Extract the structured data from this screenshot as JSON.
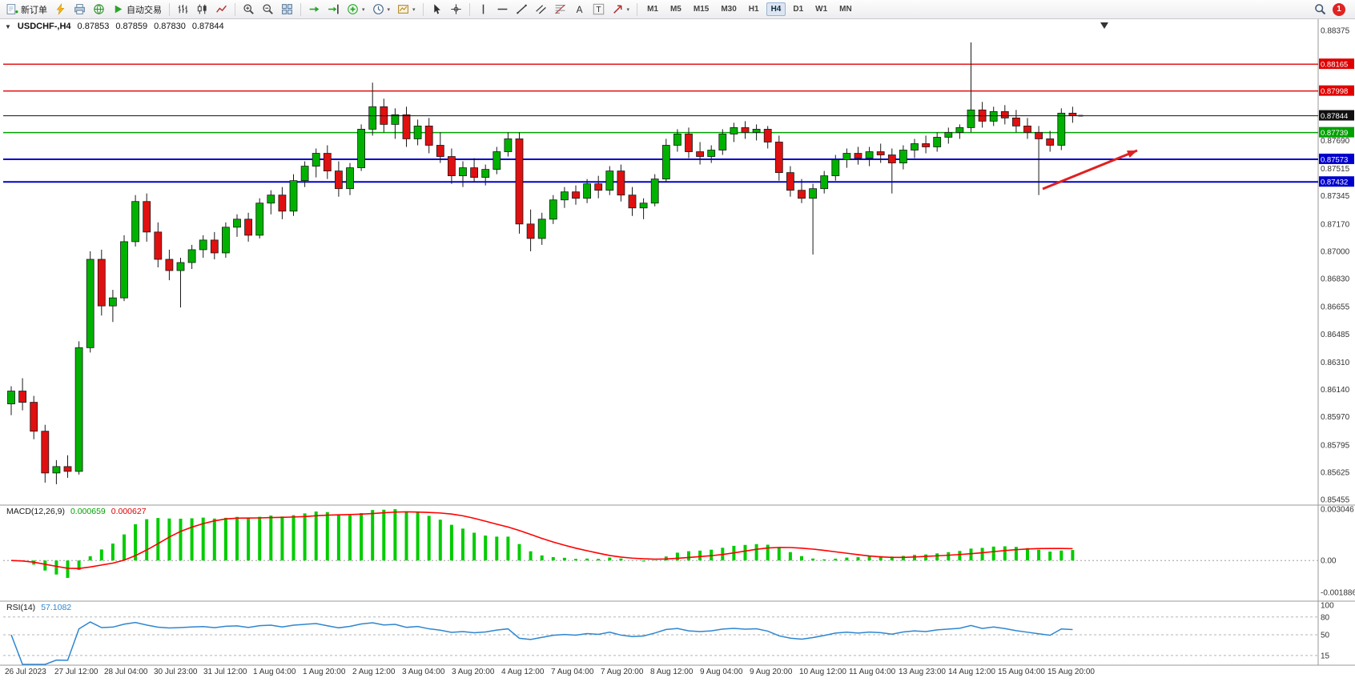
{
  "toolbar": {
    "new_order_label": "新订单",
    "auto_trading_label": "自动交易",
    "timeframes": [
      "M1",
      "M5",
      "M15",
      "M30",
      "H1",
      "H4",
      "D1",
      "W1",
      "MN"
    ],
    "active_timeframe": "H4",
    "notification_count": "1",
    "icon_names": [
      "new-order-icon",
      "flash-icon",
      "print-icon",
      "community-globe-icon",
      "autotrading-play-icon",
      "bars-chart-icon",
      "candlestick-chart-icon",
      "line-chart-icon",
      "zoom-in-icon",
      "zoom-out-icon",
      "tile-windows-icon",
      "auto-scroll-icon",
      "chart-shift-icon",
      "indicators-add-icon",
      "periods-clock-icon",
      "template-icon",
      "cursor-icon",
      "crosshair-icon",
      "vertical-line-icon",
      "horizontal-line-icon",
      "trendline-icon",
      "equidistant-channel-icon",
      "fibonacci-icon",
      "text-icon",
      "text-label-icon",
      "arrows-icon",
      "search-icon"
    ]
  },
  "chart": {
    "symbol_period": "USDCHF-,H4",
    "open": "0.87853",
    "high": "0.87859",
    "low": "0.87830",
    "close": "0.87844"
  },
  "indicators": {
    "macd": {
      "name": "MACD(12,26,9)",
      "value_main": "0.000659",
      "value_signal": "0.000627"
    },
    "rsi": {
      "name": "RSI(14)",
      "value": "57.1082"
    }
  },
  "chart_data": {
    "type": "candlestick",
    "symbol": "USDCHF",
    "timeframe": "H4",
    "price_axis": {
      "min": 0.85455,
      "max": 0.88375,
      "labels": [
        "0.88375",
        "0.87690",
        "0.87515",
        "0.87345",
        "0.87170",
        "0.87000",
        "0.86830",
        "0.86655",
        "0.86485",
        "0.86310",
        "0.86140",
        "0.85970",
        "0.85795",
        "0.85625",
        "0.85455"
      ]
    },
    "time_labels": [
      "26 Jul 2023",
      "27 Jul 12:00",
      "28 Jul 04:00",
      "30 Jul 23:00",
      "31 Jul 12:00",
      "1 Aug 04:00",
      "1 Aug 20:00",
      "2 Aug 12:00",
      "3 Aug 04:00",
      "3 Aug 20:00",
      "4 Aug 12:00",
      "7 Aug 04:00",
      "7 Aug 20:00",
      "8 Aug 12:00",
      "9 Aug 04:00",
      "9 Aug 20:00",
      "10 Aug 12:00",
      "11 Aug 04:00",
      "13 Aug 23:00",
      "14 Aug 12:00",
      "15 Aug 04:00",
      "15 Aug 20:00"
    ],
    "hlines": [
      {
        "value": 0.88165,
        "label": "0.88165",
        "color": "#e00000",
        "width": 1.4
      },
      {
        "value": 0.87998,
        "label": "0.87998",
        "color": "#e00000",
        "width": 1.4
      },
      {
        "value": 0.87739,
        "label": "0.87739",
        "color": "#00a000",
        "width": 1.6
      },
      {
        "value": 0.87573,
        "label": "0.87573",
        "color": "#0000cc",
        "width": 2
      },
      {
        "value": 0.87432,
        "label": "0.87432",
        "color": "#0000cc",
        "width": 2
      }
    ],
    "current_price": {
      "value": 0.87844,
      "label": "0.87844",
      "color": "#111111"
    },
    "arrow": {
      "from": [
        1302,
        212
      ],
      "to": [
        1420,
        164
      ],
      "color": "#e02020",
      "width": 3
    },
    "macd": {
      "params": [
        12,
        26,
        9
      ],
      "max": 0.003046,
      "min": -0.001886,
      "axis": [
        {
          "value": 0.003046,
          "label": "0.003046"
        },
        {
          "value": 0,
          "label": "0.00"
        },
        {
          "value": -0.001886,
          "label": "-0.001886"
        }
      ]
    },
    "rsi": {
      "period": 14,
      "last": 57.1082,
      "levels": [
        80,
        50,
        15
      ],
      "axis": [
        {
          "value": 100,
          "label": "100"
        },
        {
          "value": 80,
          "label": "80"
        },
        {
          "value": 50,
          "label": "50"
        },
        {
          "value": 15,
          "label": "15"
        }
      ]
    },
    "colors": {
      "bull": "#00b200",
      "bear": "#e01010",
      "wick": "#1a1a1a",
      "macd_hist": "#00cc00",
      "macd_signal": "#ff0000",
      "rsi_line": "#2e86d0",
      "background": "#ffffff"
    },
    "candles": [
      [
        0.8605,
        0.8616,
        0.8598,
        0.8613
      ],
      [
        0.8613,
        0.8621,
        0.8601,
        0.8606
      ],
      [
        0.8606,
        0.861,
        0.8583,
        0.8588
      ],
      [
        0.8588,
        0.8592,
        0.8556,
        0.8562
      ],
      [
        0.8562,
        0.857,
        0.8555,
        0.8566
      ],
      [
        0.8566,
        0.8573,
        0.8559,
        0.8563
      ],
      [
        0.8563,
        0.8644,
        0.8561,
        0.864
      ],
      [
        0.864,
        0.87,
        0.8637,
        0.8695
      ],
      [
        0.8695,
        0.8701,
        0.866,
        0.8666
      ],
      [
        0.8666,
        0.8676,
        0.8656,
        0.8671
      ],
      [
        0.8671,
        0.871,
        0.8669,
        0.8706
      ],
      [
        0.8706,
        0.8735,
        0.8703,
        0.8731
      ],
      [
        0.8731,
        0.8736,
        0.8706,
        0.8712
      ],
      [
        0.8712,
        0.8718,
        0.869,
        0.8695
      ],
      [
        0.8695,
        0.8701,
        0.8682,
        0.8688
      ],
      [
        0.8688,
        0.8696,
        0.8665,
        0.8693
      ],
      [
        0.8693,
        0.8704,
        0.8689,
        0.8701
      ],
      [
        0.8701,
        0.871,
        0.8696,
        0.8707
      ],
      [
        0.8707,
        0.8712,
        0.8695,
        0.8699
      ],
      [
        0.8699,
        0.8718,
        0.8696,
        0.8715
      ],
      [
        0.8715,
        0.8723,
        0.8709,
        0.872
      ],
      [
        0.872,
        0.8724,
        0.8706,
        0.871
      ],
      [
        0.871,
        0.8733,
        0.8708,
        0.873
      ],
      [
        0.873,
        0.8738,
        0.8723,
        0.8735
      ],
      [
        0.8735,
        0.874,
        0.872,
        0.8725
      ],
      [
        0.8725,
        0.8748,
        0.8722,
        0.8744
      ],
      [
        0.8744,
        0.8756,
        0.874,
        0.8753
      ],
      [
        0.8753,
        0.8764,
        0.8746,
        0.8761
      ],
      [
        0.8761,
        0.8766,
        0.8745,
        0.875
      ],
      [
        0.875,
        0.8756,
        0.8734,
        0.8739
      ],
      [
        0.8739,
        0.8755,
        0.8735,
        0.8752
      ],
      [
        0.8752,
        0.8779,
        0.875,
        0.8776
      ],
      [
        0.8776,
        0.8805,
        0.8772,
        0.879
      ],
      [
        0.879,
        0.8795,
        0.8774,
        0.8779
      ],
      [
        0.8779,
        0.8789,
        0.877,
        0.8785
      ],
      [
        0.8785,
        0.879,
        0.8765,
        0.877
      ],
      [
        0.877,
        0.8782,
        0.8766,
        0.8778
      ],
      [
        0.8778,
        0.8783,
        0.8761,
        0.8766
      ],
      [
        0.8766,
        0.8774,
        0.8755,
        0.8759
      ],
      [
        0.8759,
        0.8764,
        0.8742,
        0.8747
      ],
      [
        0.8747,
        0.8756,
        0.874,
        0.8752
      ],
      [
        0.8752,
        0.8758,
        0.8743,
        0.8746
      ],
      [
        0.8746,
        0.8754,
        0.8741,
        0.8751
      ],
      [
        0.8751,
        0.8765,
        0.8748,
        0.8762
      ],
      [
        0.8762,
        0.8774,
        0.8759,
        0.877
      ],
      [
        0.877,
        0.8774,
        0.8711,
        0.8717
      ],
      [
        0.8717,
        0.8726,
        0.87,
        0.8708
      ],
      [
        0.8708,
        0.8724,
        0.8704,
        0.872
      ],
      [
        0.872,
        0.8735,
        0.8717,
        0.8732
      ],
      [
        0.8732,
        0.874,
        0.8727,
        0.8737
      ],
      [
        0.8737,
        0.8741,
        0.8729,
        0.8733
      ],
      [
        0.8733,
        0.8745,
        0.873,
        0.8742
      ],
      [
        0.8742,
        0.8747,
        0.8733,
        0.8738
      ],
      [
        0.8738,
        0.8753,
        0.8735,
        0.875
      ],
      [
        0.875,
        0.8754,
        0.8731,
        0.8735
      ],
      [
        0.8735,
        0.874,
        0.8722,
        0.8727
      ],
      [
        0.8727,
        0.8733,
        0.872,
        0.873
      ],
      [
        0.873,
        0.8748,
        0.8728,
        0.8745
      ],
      [
        0.8745,
        0.877,
        0.8743,
        0.8766
      ],
      [
        0.8766,
        0.8776,
        0.8762,
        0.8773
      ],
      [
        0.8773,
        0.8777,
        0.8758,
        0.8762
      ],
      [
        0.8762,
        0.8768,
        0.8754,
        0.8759
      ],
      [
        0.8759,
        0.8766,
        0.8755,
        0.8763
      ],
      [
        0.8763,
        0.8776,
        0.876,
        0.8773
      ],
      [
        0.8773,
        0.878,
        0.8768,
        0.8777
      ],
      [
        0.8777,
        0.8781,
        0.877,
        0.8774
      ],
      [
        0.8774,
        0.8779,
        0.8769,
        0.8776
      ],
      [
        0.8776,
        0.8778,
        0.8764,
        0.8768
      ],
      [
        0.8768,
        0.8772,
        0.8744,
        0.8749
      ],
      [
        0.8749,
        0.8753,
        0.8734,
        0.8738
      ],
      [
        0.8738,
        0.8745,
        0.873,
        0.8733
      ],
      [
        0.8733,
        0.8742,
        0.8698,
        0.8739
      ],
      [
        0.8739,
        0.875,
        0.8736,
        0.8747
      ],
      [
        0.8747,
        0.876,
        0.8744,
        0.8757
      ],
      [
        0.8757,
        0.8764,
        0.8752,
        0.8761
      ],
      [
        0.8761,
        0.8765,
        0.8754,
        0.8758
      ],
      [
        0.8758,
        0.8765,
        0.8753,
        0.8762
      ],
      [
        0.8762,
        0.8767,
        0.8755,
        0.876
      ],
      [
        0.876,
        0.8764,
        0.8736,
        0.8755
      ],
      [
        0.8755,
        0.8766,
        0.8751,
        0.8763
      ],
      [
        0.8763,
        0.877,
        0.8758,
        0.8767
      ],
      [
        0.8767,
        0.8772,
        0.8761,
        0.8765
      ],
      [
        0.8765,
        0.8774,
        0.8762,
        0.8771
      ],
      [
        0.8771,
        0.8777,
        0.8767,
        0.8774
      ],
      [
        0.8774,
        0.8779,
        0.877,
        0.8777
      ],
      [
        0.8777,
        0.883,
        0.8774,
        0.8788
      ],
      [
        0.8788,
        0.8793,
        0.8777,
        0.8781
      ],
      [
        0.8781,
        0.879,
        0.8778,
        0.8787
      ],
      [
        0.8787,
        0.8791,
        0.8779,
        0.8783
      ],
      [
        0.8783,
        0.8788,
        0.8774,
        0.8778
      ],
      [
        0.8778,
        0.8783,
        0.877,
        0.8774
      ],
      [
        0.8774,
        0.8778,
        0.8735,
        0.877
      ],
      [
        0.877,
        0.8775,
        0.8762,
        0.8766
      ],
      [
        0.8766,
        0.8789,
        0.8763,
        0.8786
      ],
      [
        0.8786,
        0.879,
        0.878,
        0.87844
      ]
    ]
  }
}
